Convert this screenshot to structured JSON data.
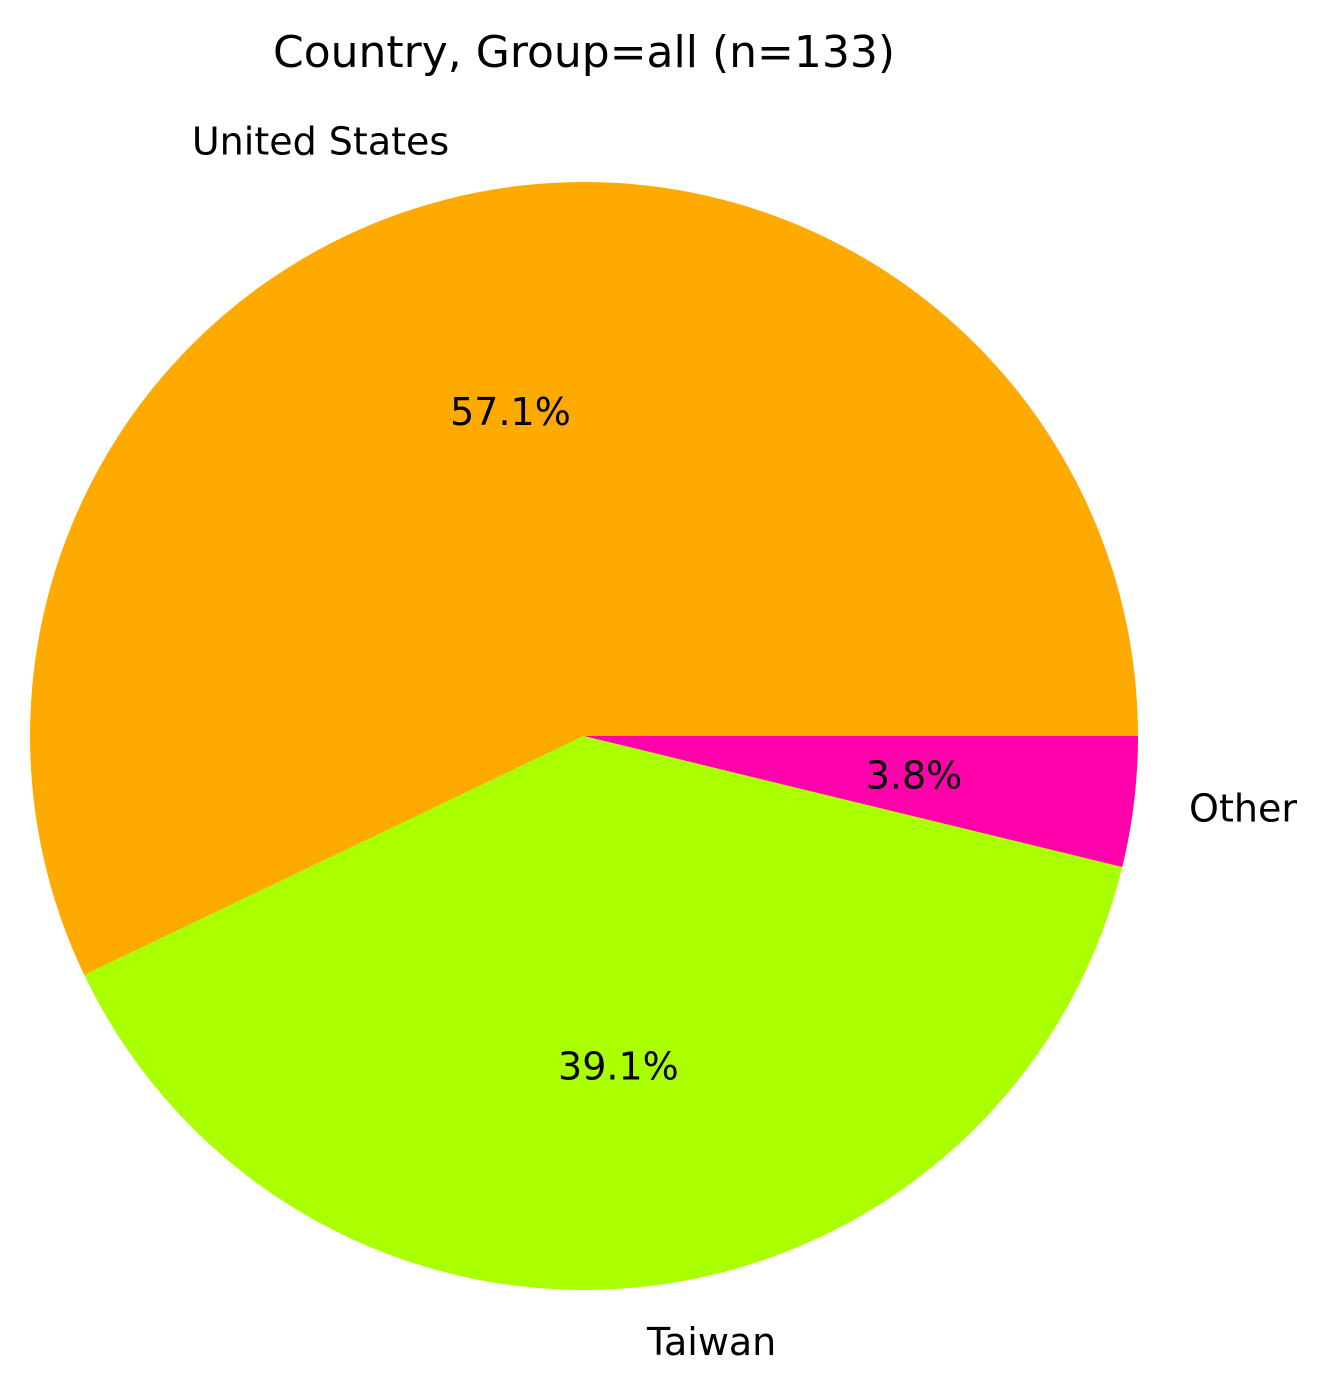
{
  "chart_data": {
    "type": "pie",
    "title": "Country, Group=all (n=133)",
    "slices": [
      {
        "label": "United States",
        "value": 57.1,
        "pct_label": "57.1%",
        "color": "#ffaa00"
      },
      {
        "label": "Taiwan",
        "value": 39.1,
        "pct_label": "39.1%",
        "color": "#aaff00"
      },
      {
        "label": "Other",
        "value": 3.8,
        "pct_label": "3.8%",
        "color": "#ff00aa"
      }
    ],
    "start_angle_deg": 0,
    "direction": "counterclockwise"
  }
}
